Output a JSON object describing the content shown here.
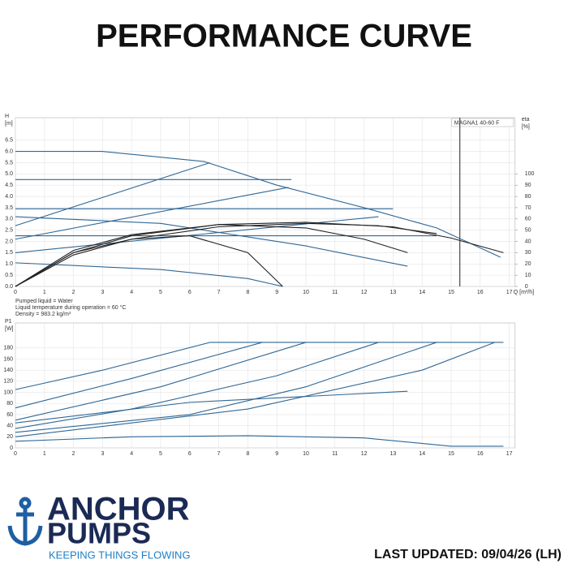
{
  "header": {
    "title": "PERFORMANCE CURVE"
  },
  "footer": {
    "brand_top": "ANCHOR",
    "brand_bottom": "PUMPS",
    "tagline": "KEEPING THINGS FLOWING",
    "updated": "LAST UPDATED: 09/04/26 (LH)"
  },
  "chart_data": [
    {
      "type": "line",
      "model": "MAGNA1 40-60 F",
      "y_label": "H",
      "y_unit": "[m]",
      "y2_label": "eta",
      "y2_unit": "[%]",
      "x_label": "Q [m³/h]",
      "notes": [
        "Pumped liquid = Water",
        "Liquid temperature during operation = 60 °C",
        "Density = 983.2 kg/m³"
      ],
      "xlim": [
        0,
        17.2
      ],
      "ylim": [
        0,
        7.5
      ],
      "y2lim": [
        0,
        150
      ],
      "grid": true,
      "xticks": [
        0,
        1,
        2,
        3,
        4,
        5,
        6,
        7,
        8,
        9,
        10,
        11,
        12,
        13,
        14,
        15,
        16,
        17
      ],
      "yticks": [
        {
          "value": 0,
          "label": "0.0"
        },
        {
          "value": 0.5,
          "label": "0.5"
        },
        {
          "value": 1,
          "label": "1.0"
        },
        {
          "value": 1.5,
          "label": "1.5"
        },
        {
          "value": 2,
          "label": "2.0"
        },
        {
          "value": 2.5,
          "label": "2.5"
        },
        {
          "value": 3,
          "label": "3.0"
        },
        {
          "value": 3.5,
          "label": "3.5"
        },
        {
          "value": 4,
          "label": "4.0"
        },
        {
          "value": 4.5,
          "label": "4.5"
        },
        {
          "value": 5,
          "label": "5.0"
        },
        {
          "value": 5.5,
          "label": "5.5"
        },
        {
          "value": 6,
          "label": "6.0"
        },
        {
          "value": 6.5,
          "label": "6.5"
        }
      ],
      "y2ticks": [
        0,
        10,
        20,
        30,
        40,
        50,
        60,
        70,
        80,
        90,
        100
      ],
      "vline": {
        "x": 15.3,
        "color": "#222"
      },
      "series": [
        {
          "color": "#2f6796",
          "x": [
            0,
            3,
            6.5,
            9,
            12,
            14.5,
            16.7
          ],
          "values": [
            6.0,
            6.0,
            5.55,
            4.5,
            3.5,
            2.6,
            1.3
          ]
        },
        {
          "color": "#2f6796",
          "x": [
            0,
            9.5
          ],
          "values": [
            4.75,
            4.75
          ]
        },
        {
          "color": "#2f6796",
          "x": [
            0,
            13
          ],
          "values": [
            3.45,
            3.45
          ]
        },
        {
          "color": "#2f6796",
          "x": [
            0,
            14.5
          ],
          "values": [
            2.25,
            2.25
          ]
        },
        {
          "color": "#2f6796",
          "x": [
            0,
            6.7
          ],
          "values": [
            2.7,
            5.5
          ]
        },
        {
          "color": "#2f6796",
          "x": [
            0,
            9.4
          ],
          "values": [
            2.1,
            4.4
          ]
        },
        {
          "color": "#2f6796",
          "x": [
            0,
            12.5
          ],
          "values": [
            1.5,
            3.1
          ]
        },
        {
          "color": "#2f6796",
          "x": [
            0,
            5,
            10,
            13.5
          ],
          "values": [
            3.1,
            2.8,
            1.8,
            0.9
          ]
        },
        {
          "color": "#2f6796",
          "x": [
            0,
            5,
            8,
            9.2
          ],
          "values": [
            1.05,
            0.75,
            0.35,
            0
          ]
        },
        {
          "color": "#222222",
          "axis": "y2",
          "x": [
            0,
            2,
            4,
            7,
            10,
            13,
            15,
            16.8
          ],
          "values": [
            0,
            30,
            45,
            55,
            57,
            53,
            43,
            30
          ]
        },
        {
          "color": "#222222",
          "axis": "y2",
          "x": [
            0,
            2,
            4,
            7,
            10,
            12,
            13.5
          ],
          "values": [
            0,
            32,
            46,
            55,
            52,
            42,
            30
          ]
        },
        {
          "color": "#222222",
          "axis": "y2",
          "x": [
            0,
            2,
            4,
            6,
            8,
            9.2
          ],
          "values": [
            0,
            30,
            42,
            45,
            30,
            0
          ]
        },
        {
          "color": "#222222",
          "axis": "y2",
          "x": [
            0,
            2,
            4,
            7,
            10,
            12.5,
            14.5
          ],
          "values": [
            0,
            28,
            42,
            53,
            56,
            54,
            47
          ]
        }
      ]
    },
    {
      "type": "line",
      "y_label": "P1",
      "y_unit": "[W]",
      "xlim": [
        0,
        17.2
      ],
      "ylim": [
        0,
        225
      ],
      "grid": true,
      "xticks": [
        0,
        1,
        2,
        3,
        4,
        5,
        6,
        7,
        8,
        9,
        10,
        11,
        12,
        13,
        14,
        15,
        16,
        17
      ],
      "yticks": [
        0,
        20,
        40,
        60,
        80,
        100,
        120,
        140,
        160,
        180
      ],
      "series": [
        {
          "color": "#2f6796",
          "x": [
            0,
            3,
            6.7
          ],
          "values": [
            105,
            140,
            190
          ]
        },
        {
          "color": "#2f6796",
          "x": [
            6.7,
            16.8
          ],
          "values": [
            190,
            190
          ]
        },
        {
          "color": "#2f6796",
          "x": [
            0,
            4,
            8.5
          ],
          "values": [
            72,
            125,
            190
          ]
        },
        {
          "color": "#2f6796",
          "x": [
            0,
            5,
            10
          ],
          "values": [
            50,
            110,
            190
          ]
        },
        {
          "color": "#2f6796",
          "x": [
            0,
            4,
            9,
            12.5
          ],
          "values": [
            35,
            70,
            130,
            190
          ]
        },
        {
          "color": "#2f6796",
          "x": [
            0,
            6,
            13.5
          ],
          "values": [
            45,
            82,
            102
          ]
        },
        {
          "color": "#2f6796",
          "x": [
            0,
            6,
            10,
            14.5
          ],
          "values": [
            28,
            60,
            110,
            190
          ]
        },
        {
          "color": "#2f6796",
          "x": [
            0,
            8,
            14,
            16.5
          ],
          "values": [
            20,
            70,
            140,
            190
          ]
        },
        {
          "color": "#2f6796",
          "x": [
            0,
            4,
            8,
            12,
            15,
            16.8
          ],
          "values": [
            12,
            20,
            22,
            18,
            3,
            3
          ]
        }
      ]
    }
  ]
}
